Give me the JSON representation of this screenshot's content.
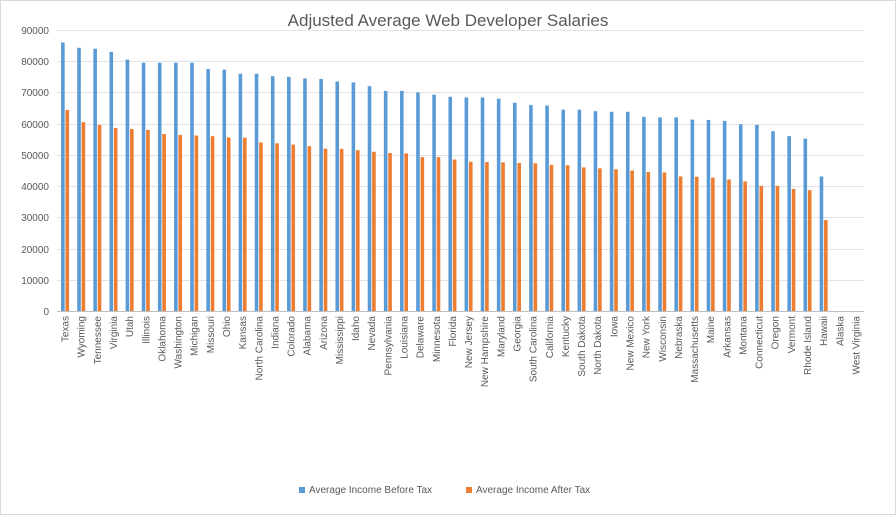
{
  "chart_data": {
    "type": "bar",
    "title": "Adjusted Average Web Developer Salaries",
    "xlabel": "",
    "ylabel": "",
    "ylim": [
      0,
      90000
    ],
    "yticks": [
      0,
      10000,
      20000,
      30000,
      40000,
      50000,
      60000,
      70000,
      80000,
      90000
    ],
    "grid": true,
    "legend_position": "bottom",
    "categories": [
      "Texas",
      "Wyoming",
      "Tennessee",
      "Virginia",
      "Utah",
      "Illinois",
      "Oklahoma",
      "Washington",
      "Michigan",
      "Missouri",
      "Ohio",
      "Kansas",
      "North Carolina",
      "Indiana",
      "Colorado",
      "Alabama",
      "Arizona",
      "Mississippi",
      "Idaho",
      "Nevada",
      "Pennsylvania",
      "Louisiana",
      "Delaware",
      "Minnesota",
      "Florida",
      "New Jersey",
      "New Hampshire",
      "Maryland",
      "Georgia",
      "South Carolina",
      "California",
      "Kentucky",
      "South Dakota",
      "North Dakota",
      "Iowa",
      "New Mexico",
      "New York",
      "Wisconsin",
      "Nebraska",
      "Massachusetts",
      "Maine",
      "Arkansas",
      "Montana",
      "Connecticut",
      "Oregon",
      "Vermont",
      "Rhode Island",
      "Hawaii",
      "Alaska",
      "West Virginia"
    ],
    "series": [
      {
        "name": "Average Income Before Tax",
        "color": "#5B9BD5",
        "values": [
          86000,
          84300,
          84000,
          83000,
          80500,
          79500,
          79500,
          79500,
          79500,
          77500,
          77300,
          76000,
          76000,
          75200,
          75000,
          74500,
          74300,
          73500,
          73200,
          72000,
          70500,
          70500,
          70000,
          69300,
          68600,
          68400,
          68400,
          68000,
          66700,
          66000,
          65800,
          64500,
          64500,
          64000,
          63800,
          63800,
          62200,
          62000,
          62000,
          61300,
          61200,
          60900,
          59800,
          59600,
          57600,
          56000,
          55200,
          43100,
          0,
          0
        ]
      },
      {
        "name": "Average Income After Tax",
        "color": "#ED7D31",
        "values": [
          64400,
          60500,
          59600,
          58600,
          58300,
          58000,
          56700,
          56400,
          56200,
          56000,
          55600,
          55500,
          54000,
          53700,
          53300,
          52800,
          52000,
          51900,
          51500,
          51000,
          50600,
          50500,
          49300,
          49300,
          48500,
          47800,
          47700,
          47600,
          47400,
          47300,
          46800,
          46700,
          46000,
          45700,
          45400,
          45000,
          44500,
          44400,
          43100,
          43000,
          42700,
          42100,
          41500,
          40100,
          40100,
          39100,
          38700,
          29100,
          0,
          0
        ]
      }
    ]
  }
}
